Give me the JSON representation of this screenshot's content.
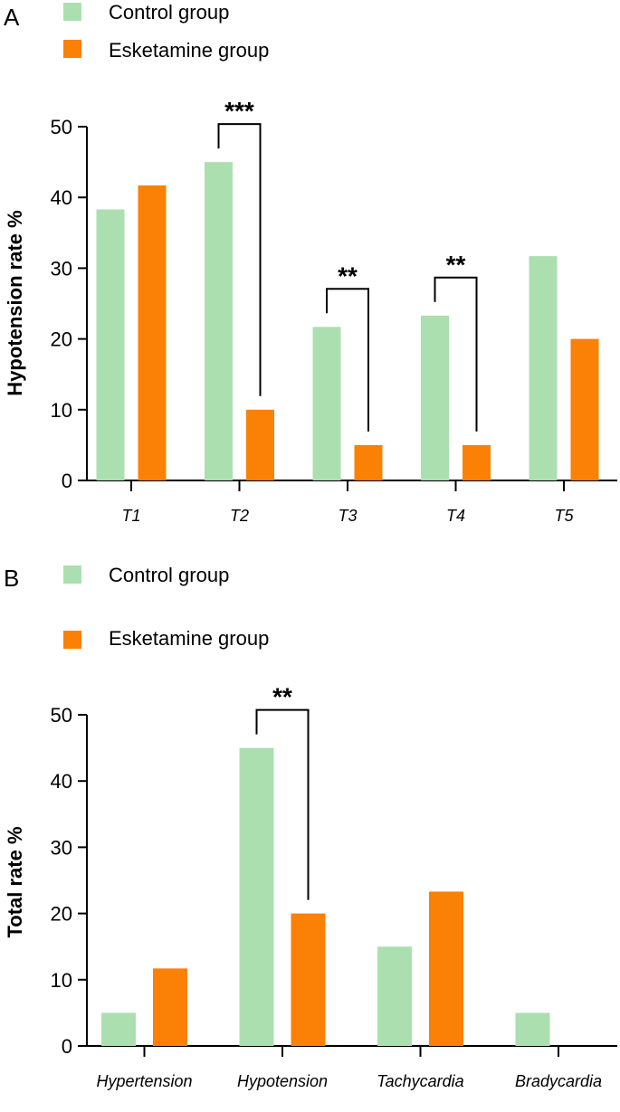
{
  "colors": {
    "control": "#acdfb0",
    "esketamine": "#fb8006",
    "axis": "#000000"
  },
  "chart_data": [
    {
      "panel": "A",
      "type": "bar",
      "legend": [
        "Control group",
        "Esketamine group"
      ],
      "ylabel": "Hypotension rate %",
      "xlabel": "",
      "ylim": [
        0,
        50
      ],
      "yticks": [
        0,
        10,
        20,
        30,
        40,
        50
      ],
      "categories": [
        "T1",
        "T2",
        "T3",
        "T4",
        "T5"
      ],
      "series": [
        {
          "name": "Control group",
          "values": [
            38.3,
            45.0,
            21.7,
            23.3,
            31.7
          ]
        },
        {
          "name": "Esketamine group",
          "values": [
            41.7,
            10.0,
            5.0,
            5.0,
            20.0
          ]
        }
      ],
      "significance": [
        {
          "category": "T2",
          "label": "***"
        },
        {
          "category": "T3",
          "label": "**"
        },
        {
          "category": "T4",
          "label": "**"
        }
      ]
    },
    {
      "panel": "B",
      "type": "bar",
      "legend": [
        "Control group",
        "Esketamine group"
      ],
      "ylabel": "Total rate %",
      "xlabel": "",
      "ylim": [
        0,
        50
      ],
      "yticks": [
        0,
        10,
        20,
        30,
        40,
        50
      ],
      "categories": [
        "Hypertension",
        "Hypotension",
        "Tachycardia",
        "Bradycardia"
      ],
      "series": [
        {
          "name": "Control group",
          "values": [
            5.0,
            45.0,
            15.0,
            5.0
          ]
        },
        {
          "name": "Esketamine group",
          "values": [
            11.7,
            20.0,
            23.3,
            0.0
          ]
        }
      ],
      "significance": [
        {
          "category": "Hypotension",
          "label": "**"
        }
      ]
    }
  ]
}
